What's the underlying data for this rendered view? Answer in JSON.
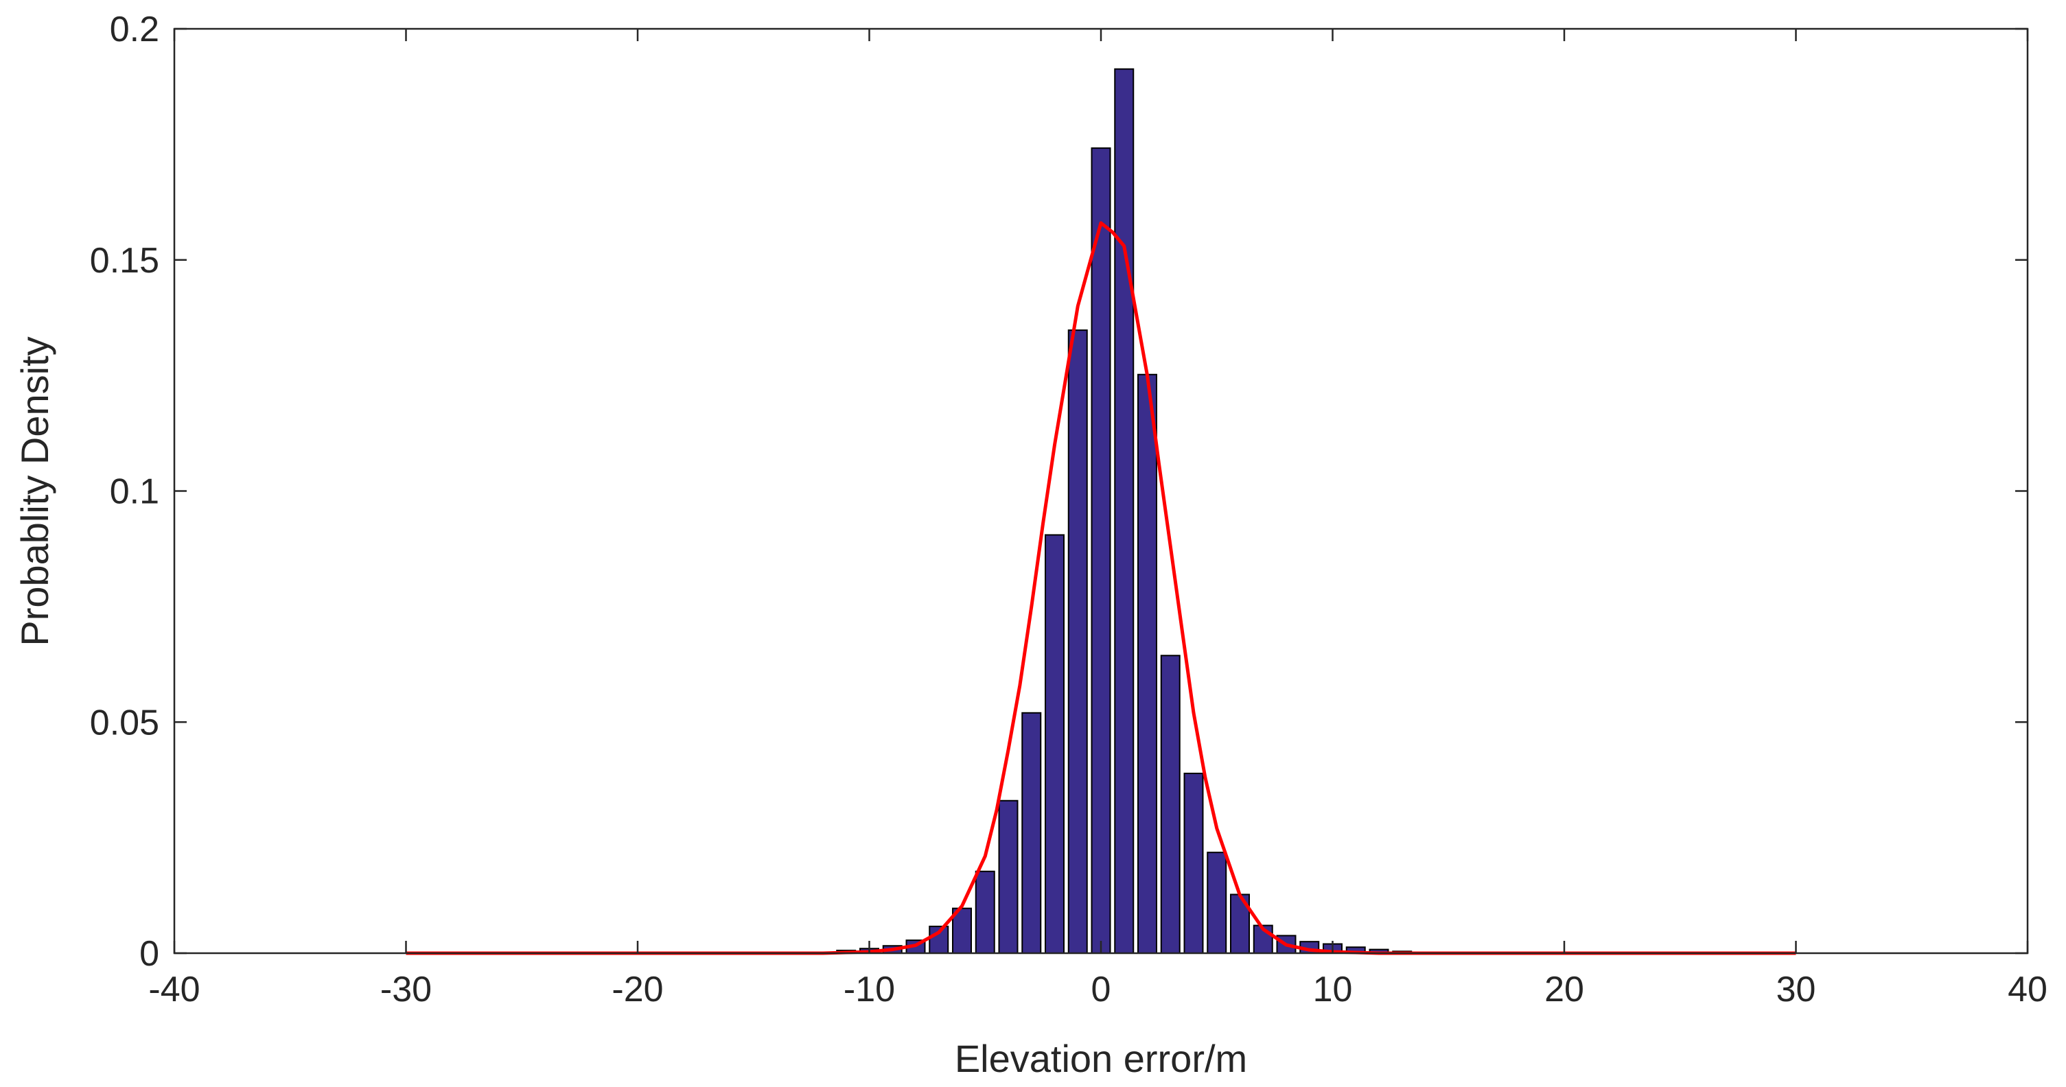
{
  "chart_data": {
    "type": "bar",
    "xlabel": "Elevation error/m",
    "ylabel": "Probablity Density",
    "xlim": [
      -40,
      40
    ],
    "ylim": [
      0,
      0.2
    ],
    "xticks": [
      "-40",
      "-30",
      "-20",
      "-10",
      "0",
      "10",
      "20",
      "30",
      "40"
    ],
    "yticks": [
      "0",
      "0.05",
      "0.1",
      "0.15",
      "0.2"
    ],
    "grid": false,
    "box": true,
    "colors": {
      "bar_fill": "#3a2d8c",
      "bar_edge": "#000000",
      "curve": "#ff0000",
      "axis": "#262626"
    },
    "histogram": {
      "bin_centers": [
        -12,
        -11,
        -10,
        -9,
        -8,
        -7,
        -6,
        -5,
        -4,
        -3,
        -2,
        -1,
        0,
        1,
        2,
        3,
        4,
        5,
        6,
        7,
        8,
        9,
        10,
        11,
        12,
        13,
        14,
        15
      ],
      "values": [
        0.0002,
        0.0006,
        0.001,
        0.0016,
        0.0028,
        0.0058,
        0.0097,
        0.0177,
        0.033,
        0.052,
        0.0905,
        0.1348,
        0.1742,
        0.1913,
        0.1252,
        0.0644,
        0.0389,
        0.0218,
        0.0127,
        0.006,
        0.0038,
        0.0025,
        0.002,
        0.0013,
        0.0008,
        0.0004,
        0.0002,
        0.0002
      ]
    },
    "fit_curve": {
      "x": [
        -30,
        -12,
        -10,
        -9,
        -8,
        -7,
        -6,
        -5,
        -4.5,
        -4,
        -3.5,
        -3,
        -2.5,
        -2,
        -1.5,
        -1,
        -0.5,
        0,
        0.5,
        1,
        1.5,
        2,
        2.5,
        3,
        3.5,
        4,
        4.5,
        5,
        6,
        7,
        8,
        9,
        10,
        12,
        15,
        30
      ],
      "y": [
        0,
        0,
        0.0003,
        0.0008,
        0.0017,
        0.0045,
        0.0102,
        0.021,
        0.031,
        0.044,
        0.058,
        0.075,
        0.093,
        0.11,
        0.125,
        0.14,
        0.149,
        0.158,
        0.156,
        0.153,
        0.139,
        0.125,
        0.106,
        0.088,
        0.07,
        0.052,
        0.038,
        0.027,
        0.0125,
        0.0052,
        0.0018,
        0.0007,
        0.0003,
        0,
        0,
        0
      ]
    }
  }
}
